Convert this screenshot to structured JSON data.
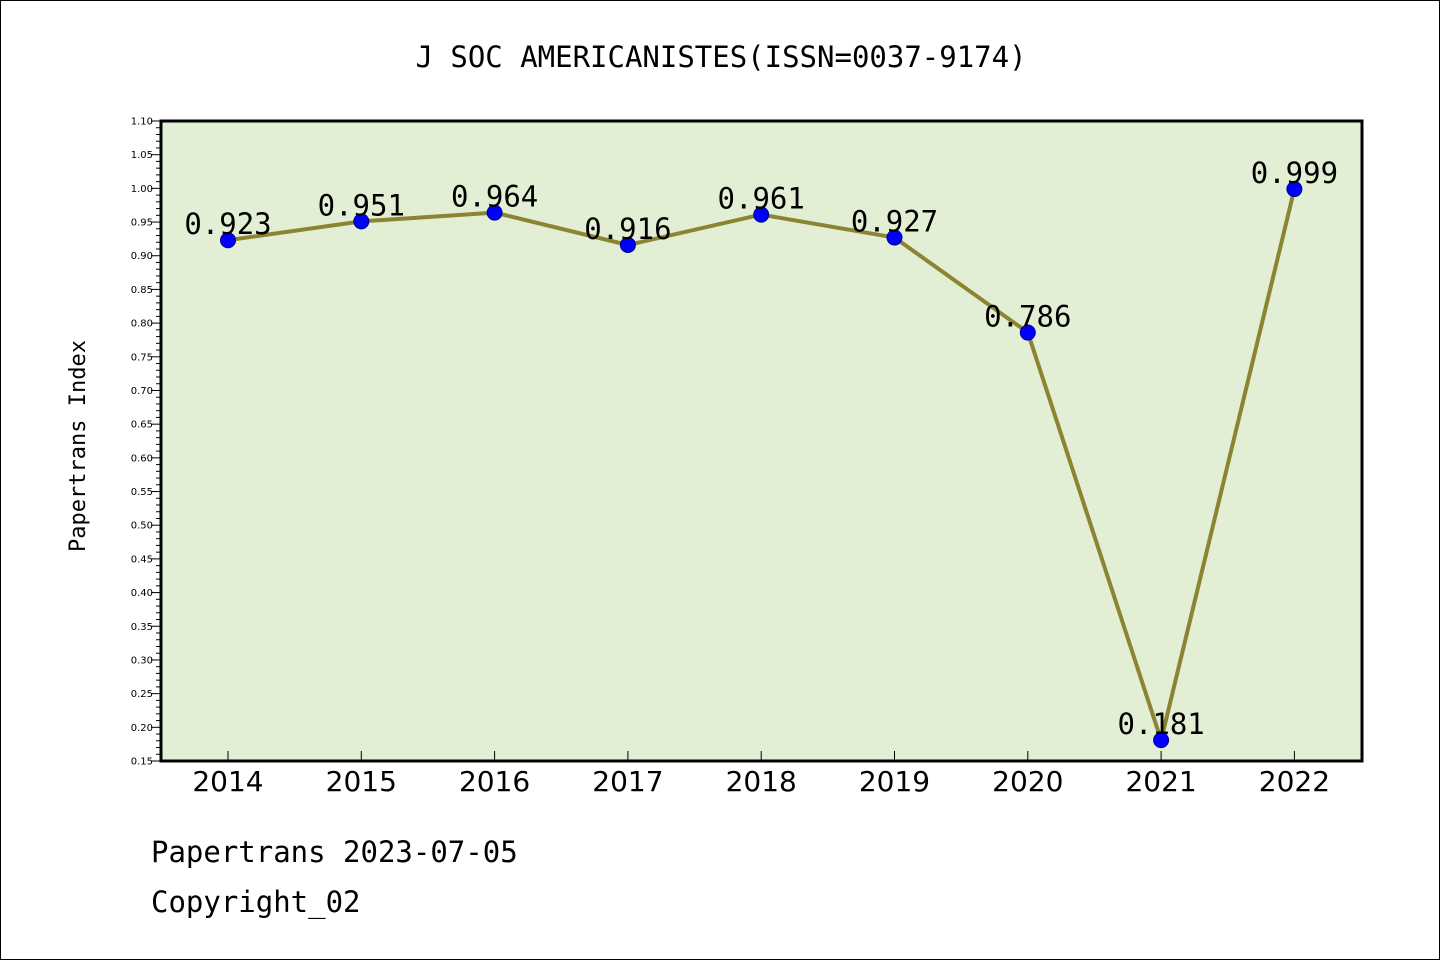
{
  "chart_data": {
    "type": "line",
    "title": "J SOC AMERICANISTES(ISSN=0037-9174)",
    "xlabel": "",
    "ylabel": "Papertrans Index",
    "categories": [
      "2014",
      "2015",
      "2016",
      "2017",
      "2018",
      "2019",
      "2020",
      "2021",
      "2022"
    ],
    "series": [
      {
        "values": [
          0.923,
          0.951,
          0.964,
          0.916,
          0.961,
          0.927,
          0.786,
          0.181,
          0.999
        ],
        "data_labels": [
          "0.923",
          "0.951",
          "0.964",
          "0.916",
          "0.961",
          "0.927",
          "0.786",
          "0.181",
          "0.999"
        ]
      }
    ],
    "ylim": [
      0.15,
      1.1
    ],
    "yticks": [
      "0.15",
      "0.20",
      "0.25",
      "0.30",
      "0.35",
      "0.40",
      "0.45",
      "0.50",
      "0.55",
      "0.60",
      "0.65",
      "0.70",
      "0.75",
      "0.80",
      "0.85",
      "0.90",
      "0.95",
      "1.00",
      "1.05",
      "1.10"
    ],
    "grid": false,
    "colors": {
      "plot_background": "#e2efd5",
      "line": "#8b8432",
      "marker": "#0000ff"
    }
  },
  "footer": {
    "date_line": "Papertrans 2023-07-05",
    "copyright": "Copyright_02"
  }
}
